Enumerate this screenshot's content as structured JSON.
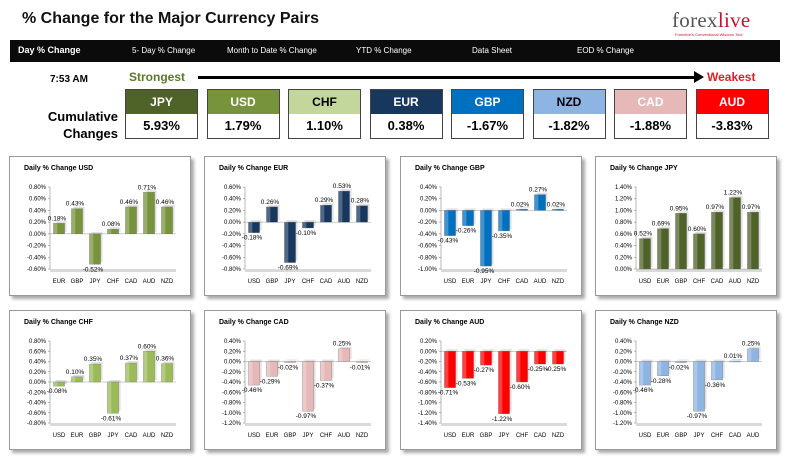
{
  "header": {
    "title": "% Change for the Major Currency Pairs",
    "logo_text_main": "forex",
    "logo_text_accent": "live",
    "logo_tagline": "Forexlive's Conventional Wisdom Tool"
  },
  "nav": [
    "Day % Change",
    "5- Day % Change",
    "Month to Date % Change",
    "YTD % Change",
    "Data Sheet",
    "EOD % Change"
  ],
  "summary": {
    "time": "7:53 AM",
    "strongest_label": "Strongest",
    "weakest_label": "Weakest",
    "row_label_1": "Cumulative",
    "row_label_2": "Changes",
    "currencies": [
      {
        "code": "JPY",
        "value": "5.93%",
        "color": "#4f6228"
      },
      {
        "code": "USD",
        "value": "1.79%",
        "color": "#77933c"
      },
      {
        "code": "CHF",
        "value": "1.10%",
        "color": "#c3d69b",
        "text_color": "#000000"
      },
      {
        "code": "EUR",
        "value": "0.38%",
        "color": "#17375e"
      },
      {
        "code": "GBP",
        "value": "-1.67%",
        "color": "#0070c0"
      },
      {
        "code": "NZD",
        "value": "-1.82%",
        "color": "#8db4e2",
        "text_color": "#000000"
      },
      {
        "code": "CAD",
        "value": "-1.88%",
        "color": "#e6b8b7"
      },
      {
        "code": "AUD",
        "value": "-3.83%",
        "color": "#ff0000"
      }
    ]
  },
  "chart_data": [
    {
      "type": "bar",
      "title": "Daily % Change USD",
      "color": "#77933c",
      "categories": [
        "EUR",
        "GBP",
        "JPY",
        "CHF",
        "CAD",
        "AUD",
        "NZD"
      ],
      "values": [
        0.18,
        0.43,
        -0.52,
        0.08,
        0.46,
        0.71,
        0.46
      ],
      "labels": [
        "0.18%",
        "0.43%",
        "-0.52%",
        "0.08%",
        "0.46%",
        "0.71%",
        "0.46%"
      ],
      "ylim": [
        -0.6,
        0.8
      ],
      "ticks": [
        0.8,
        0.6,
        0.4,
        0.2,
        0,
        -0.2,
        -0.4,
        -0.6
      ],
      "tick_labels": [
        "0.80%",
        "0.60%",
        "0.40%",
        "0.20%",
        "0.00%",
        "-0.20%",
        "-0.40%",
        "-0.60%"
      ]
    },
    {
      "type": "bar",
      "title": "Daily % Change EUR",
      "color": "#17375e",
      "categories": [
        "USD",
        "GBP",
        "JPY",
        "CHF",
        "CAD",
        "AUD",
        "NZD"
      ],
      "values": [
        -0.18,
        0.26,
        -0.69,
        -0.1,
        0.29,
        0.53,
        0.28
      ],
      "labels": [
        "-0.18%",
        "0.26%",
        "-0.69%",
        "-0.10%",
        "0.29%",
        "0.53%",
        "0.28%"
      ],
      "ylim": [
        -0.8,
        0.6
      ],
      "ticks": [
        0.6,
        0.4,
        0.2,
        0,
        -0.2,
        -0.4,
        -0.6,
        -0.8
      ],
      "tick_labels": [
        "0.60%",
        "0.40%",
        "0.20%",
        "0.00%",
        "-0.20%",
        "-0.40%",
        "-0.60%",
        "-0.80%"
      ]
    },
    {
      "type": "bar",
      "title": "Daily % Change GBP",
      "color": "#0070c0",
      "categories": [
        "USD",
        "EUR",
        "JPY",
        "CHF",
        "CAD",
        "AUD",
        "NZD"
      ],
      "values": [
        -0.43,
        -0.26,
        -0.95,
        -0.35,
        0.02,
        0.27,
        0.02
      ],
      "labels": [
        "-0.43%",
        "-0.26%",
        "-0.95%",
        "-0.35%",
        "0.02%",
        "0.27%",
        "0.02%"
      ],
      "ylim": [
        -1.0,
        0.4
      ],
      "ticks": [
        0.4,
        0.2,
        0,
        -0.2,
        -0.4,
        -0.6,
        -0.8,
        -1.0
      ],
      "tick_labels": [
        "0.40%",
        "0.20%",
        "0.00%",
        "-0.20%",
        "-0.40%",
        "-0.60%",
        "-0.80%",
        "-1.00%"
      ]
    },
    {
      "type": "bar",
      "title": "Daily % Change JPY",
      "color": "#4f6228",
      "categories": [
        "USD",
        "EUR",
        "GBP",
        "CHF",
        "CAD",
        "AUD",
        "NZD"
      ],
      "values": [
        0.52,
        0.69,
        0.95,
        0.6,
        0.97,
        1.22,
        0.97
      ],
      "labels": [
        "0.52%",
        "0.69%",
        "0.95%",
        "0.60%",
        "0.97%",
        "1.22%",
        "0.97%"
      ],
      "ylim": [
        0,
        1.4
      ],
      "ticks": [
        1.4,
        1.2,
        1.0,
        0.8,
        0.6,
        0.4,
        0.2,
        0
      ],
      "tick_labels": [
        "1.40%",
        "1.20%",
        "1.00%",
        "0.80%",
        "0.60%",
        "0.40%",
        "0.20%",
        "0.00%"
      ]
    },
    {
      "type": "bar",
      "title": "Daily % Change CHF",
      "color": "#9bbb59",
      "categories": [
        "USD",
        "EUR",
        "GBP",
        "JPY",
        "CAD",
        "AUD",
        "NZD"
      ],
      "values": [
        -0.08,
        0.1,
        0.35,
        -0.61,
        0.37,
        0.6,
        0.36
      ],
      "labels": [
        "-0.08%",
        "0.10%",
        "0.35%",
        "-0.61%",
        "0.37%",
        "0.60%",
        "0.36%"
      ],
      "ylim": [
        -0.8,
        0.8
      ],
      "ticks": [
        0.8,
        0.6,
        0.4,
        0.2,
        0,
        -0.2,
        -0.4,
        -0.6,
        -0.8
      ],
      "tick_labels": [
        "0.80%",
        "0.60%",
        "0.40%",
        "0.20%",
        "0.00%",
        "-0.20%",
        "-0.40%",
        "-0.60%",
        "-0.80%"
      ]
    },
    {
      "type": "bar",
      "title": "Daily % Change CAD",
      "color": "#e6b8b7",
      "categories": [
        "USD",
        "EUR",
        "GBP",
        "JPY",
        "CHF",
        "AUD",
        "NZD"
      ],
      "values": [
        -0.46,
        -0.29,
        -0.02,
        -0.97,
        -0.37,
        0.25,
        -0.01
      ],
      "labels": [
        "-0.46%",
        "-0.29%",
        "-0.02%",
        "-0.97%",
        "-0.37%",
        "0.25%",
        "-0.01%"
      ],
      "ylim": [
        -1.2,
        0.4
      ],
      "ticks": [
        0.4,
        0.2,
        0,
        -0.2,
        -0.4,
        -0.6,
        -0.8,
        -1.0,
        -1.2
      ],
      "tick_labels": [
        "0.40%",
        "0.20%",
        "0.00%",
        "-0.20%",
        "-0.40%",
        "-0.60%",
        "-0.80%",
        "-1.00%",
        "-1.20%"
      ]
    },
    {
      "type": "bar",
      "title": "Daily % Change AUD",
      "color": "#ff0000",
      "categories": [
        "USD",
        "EUR",
        "GBP",
        "JPY",
        "CHF",
        "CAD",
        "NZD"
      ],
      "values": [
        -0.71,
        -0.53,
        -0.27,
        -1.22,
        -0.6,
        -0.25,
        -0.25
      ],
      "labels": [
        "-0.71%",
        "-0.53%",
        "-0.27%",
        "-1.22%",
        "-0.60%",
        "-0.25%",
        "-0.25%"
      ],
      "ylim": [
        -1.4,
        0.2
      ],
      "ticks": [
        0.2,
        0,
        -0.2,
        -0.4,
        -0.6,
        -0.8,
        -1.0,
        -1.2,
        -1.4
      ],
      "tick_labels": [
        "0.20%",
        "0.00%",
        "-0.20%",
        "-0.40%",
        "-0.60%",
        "-0.80%",
        "-1.00%",
        "-1.20%",
        "-1.40%"
      ]
    },
    {
      "type": "bar",
      "title": "Daily % Change NZD",
      "color": "#8db4e2",
      "categories": [
        "USD",
        "EUR",
        "GBP",
        "JPY",
        "CHF",
        "CAD",
        "AUD"
      ],
      "values": [
        -0.46,
        -0.28,
        -0.02,
        -0.97,
        -0.36,
        0.01,
        0.25
      ],
      "labels": [
        "-0.46%",
        "-0.28%",
        "-0.02%",
        "-0.97%",
        "-0.36%",
        "0.01%",
        "0.25%"
      ],
      "ylim": [
        -1.2,
        0.4
      ],
      "ticks": [
        0.4,
        0.2,
        0,
        -0.2,
        -0.4,
        -0.6,
        -0.8,
        -1.0,
        -1.2
      ],
      "tick_labels": [
        "0.40%",
        "0.20%",
        "0.00%",
        "-0.20%",
        "-0.40%",
        "-0.60%",
        "-0.80%",
        "-1.00%",
        "-1.20%"
      ]
    }
  ]
}
